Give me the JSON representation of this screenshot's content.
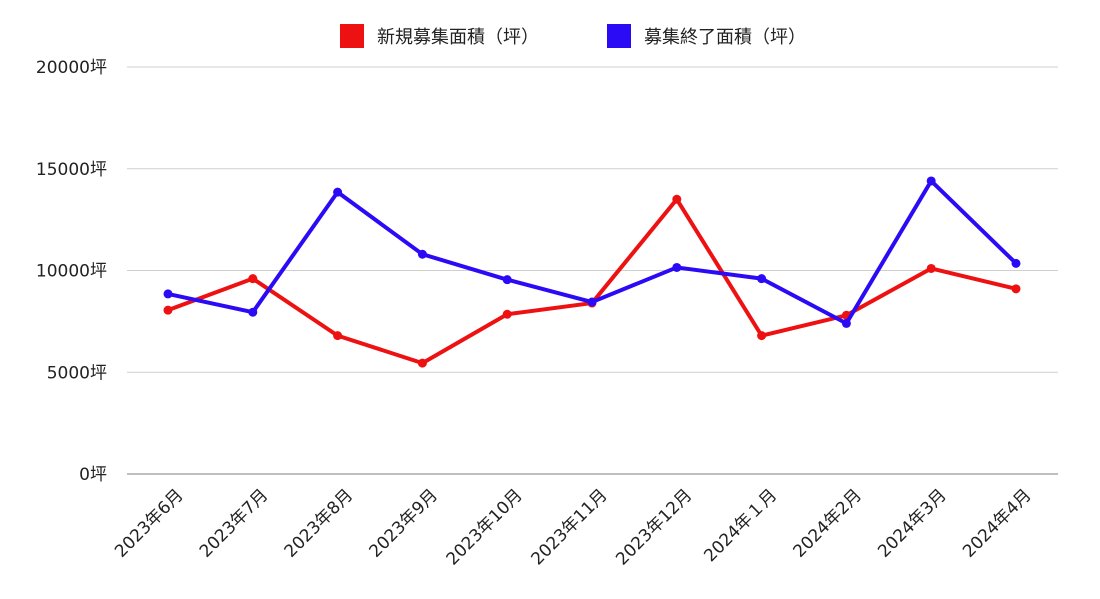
{
  "chart_data": {
    "type": "line",
    "categories": [
      "2023年6月",
      "2023年7月",
      "2023年8月",
      "2023年9月",
      "2023年10月",
      "2023年11月",
      "2023年12月",
      "2024年１月",
      "2024年2月",
      "2024年3月",
      "2024年4月"
    ],
    "series": [
      {
        "name": "新規募集面積（坪）",
        "color": "#ee1111",
        "values": [
          8050,
          9600,
          6800,
          5450,
          7850,
          8400,
          13500,
          6800,
          7800,
          10100,
          9100
        ]
      },
      {
        "name": "募集終了面積（坪）",
        "color": "#2b0bf5",
        "values": [
          8850,
          7950,
          13850,
          10800,
          9550,
          8450,
          10150,
          9600,
          7400,
          14400,
          10350
        ]
      }
    ],
    "y_ticks": [
      0,
      5000,
      10000,
      15000,
      20000
    ],
    "y_tick_labels": [
      "0坪",
      "5000坪",
      "10000坪",
      "15000坪",
      "20000坪"
    ],
    "ylim": [
      0,
      20000
    ],
    "grid": true,
    "legend_position": "top-center"
  }
}
